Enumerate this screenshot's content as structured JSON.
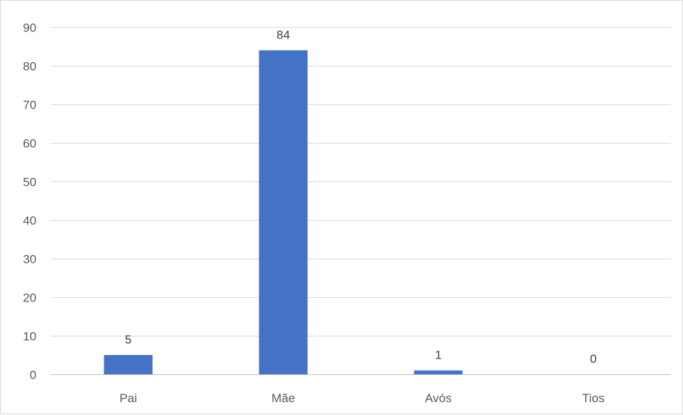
{
  "chart_data": {
    "type": "bar",
    "title": "",
    "xlabel": "",
    "ylabel": "",
    "categories": [
      "Pai",
      "Mãe",
      "Avós",
      "Tios"
    ],
    "values": [
      5,
      84,
      1,
      0
    ],
    "data_labels": [
      "5",
      "84",
      "1",
      "0"
    ],
    "ylim": [
      0,
      90
    ],
    "yticks": [
      0,
      10,
      20,
      30,
      40,
      50,
      60,
      70,
      80,
      90
    ],
    "ytick_labels": [
      "0",
      "10",
      "20",
      "30",
      "40",
      "50",
      "60",
      "70",
      "80",
      "90"
    ],
    "grid": true,
    "legend": "none",
    "colors": {
      "bar": "#4472c4",
      "grid": "#d9d9d9",
      "axis": "#bfbfbf",
      "tick_text": "#595959",
      "label_text": "#404040"
    }
  }
}
